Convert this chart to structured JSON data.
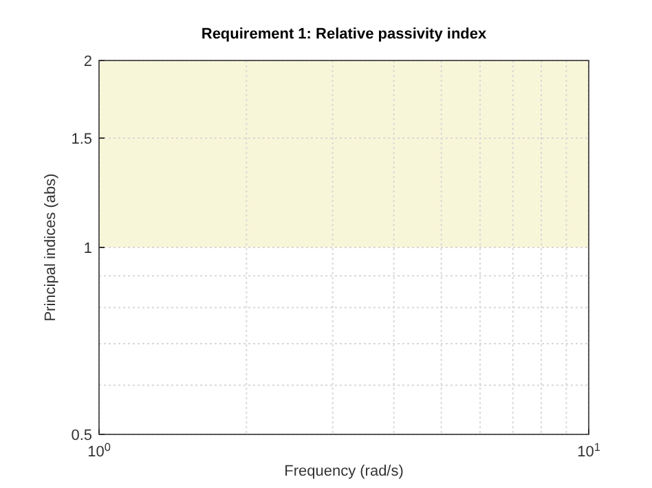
{
  "chart_data": {
    "type": "line",
    "title": "Requirement 1: Relative passivity index",
    "xlabel": "Frequency (rad/s)",
    "ylabel": "Principal indices (abs)",
    "log": "xy",
    "grid": true,
    "xlim": [
      1,
      10
    ],
    "xticks": [
      {
        "value": 1,
        "label": "10$^{0}$"
      },
      {
        "value": 10,
        "label": "10$^{1}$"
      }
    ],
    "ylim": [
      0.5,
      2
    ],
    "yticks": [
      0.5,
      1,
      1.5,
      2
    ],
    "bands": [
      {
        "axis": "y",
        "from": 1,
        "to": 2,
        "color": "#f8f6d8"
      }
    ]
  }
}
